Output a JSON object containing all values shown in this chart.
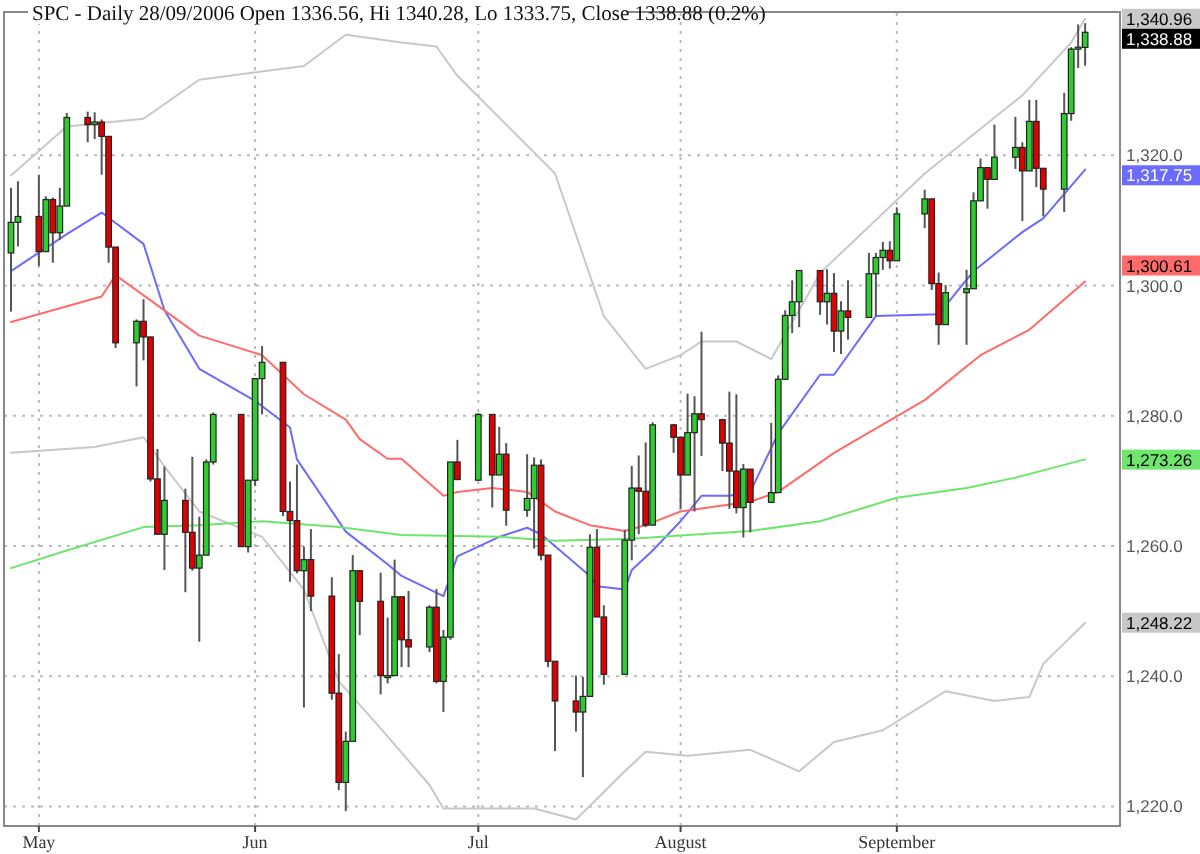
{
  "chart_data": {
    "type": "candlestick",
    "title": "SPC - Daily 28/09/2006 Open 1336.56, Hi 1340.28, Lo 1333.75, Close 1338.88 (0.2%)",
    "x": [
      "2006-04-27",
      "2006-04-28",
      "2006-05-01",
      "2006-05-02",
      "2006-05-03",
      "2006-05-04",
      "2006-05-05",
      "2006-05-08",
      "2006-05-09",
      "2006-05-10",
      "2006-05-11",
      "2006-05-12",
      "2006-05-15",
      "2006-05-16",
      "2006-05-17",
      "2006-05-18",
      "2006-05-19",
      "2006-05-22",
      "2006-05-23",
      "2006-05-24",
      "2006-05-25",
      "2006-05-26",
      "2006-05-30",
      "2006-05-31",
      "2006-06-01",
      "2006-06-02",
      "2006-06-05",
      "2006-06-06",
      "2006-06-07",
      "2006-06-08",
      "2006-06-09",
      "2006-06-12",
      "2006-06-13",
      "2006-06-14",
      "2006-06-15",
      "2006-06-16",
      "2006-06-19",
      "2006-06-20",
      "2006-06-21",
      "2006-06-22",
      "2006-06-23",
      "2006-06-26",
      "2006-06-27",
      "2006-06-28",
      "2006-06-29",
      "2006-06-30",
      "2006-07-03",
      "2006-07-05",
      "2006-07-06",
      "2006-07-07",
      "2006-07-10",
      "2006-07-11",
      "2006-07-12",
      "2006-07-13",
      "2006-07-14",
      "2006-07-17",
      "2006-07-18",
      "2006-07-19",
      "2006-07-20",
      "2006-07-21",
      "2006-07-24",
      "2006-07-25",
      "2006-07-26",
      "2006-07-27",
      "2006-07-28",
      "2006-07-31",
      "2006-08-01",
      "2006-08-02",
      "2006-08-03",
      "2006-08-04",
      "2006-08-07",
      "2006-08-08",
      "2006-08-09",
      "2006-08-10",
      "2006-08-11",
      "2006-08-14",
      "2006-08-15",
      "2006-08-16",
      "2006-08-17",
      "2006-08-18",
      "2006-08-21",
      "2006-08-22",
      "2006-08-23",
      "2006-08-24",
      "2006-08-25",
      "2006-08-28",
      "2006-08-29",
      "2006-08-30",
      "2006-08-31",
      "2006-09-01",
      "2006-09-05",
      "2006-09-06",
      "2006-09-07",
      "2006-09-08",
      "2006-09-11",
      "2006-09-12",
      "2006-09-13",
      "2006-09-14",
      "2006-09-15",
      "2006-09-18",
      "2006-09-19",
      "2006-09-20",
      "2006-09-21",
      "2006-09-22",
      "2006-09-25",
      "2006-09-26",
      "2006-09-27",
      "2006-09-28"
    ],
    "ohlc": [
      [
        1305.0,
        1315.0,
        1296.0,
        1309.7
      ],
      [
        1309.7,
        1316.0,
        1306.0,
        1310.6
      ],
      [
        1310.6,
        1317.0,
        1303.0,
        1305.2
      ],
      [
        1305.2,
        1313.7,
        1305.2,
        1313.2
      ],
      [
        1313.2,
        1313.5,
        1303.5,
        1308.1
      ],
      [
        1308.1,
        1315.0,
        1307.0,
        1312.2
      ],
      [
        1312.2,
        1326.5,
        1312.2,
        1325.8
      ],
      [
        1325.8,
        1326.7,
        1322.0,
        1324.7
      ],
      [
        1324.7,
        1326.6,
        1322.5,
        1325.1
      ],
      [
        1325.1,
        1325.5,
        1317.0,
        1322.9
      ],
      [
        1322.9,
        1322.9,
        1303.5,
        1305.9
      ],
      [
        1305.9,
        1305.9,
        1290.4,
        1291.2
      ],
      [
        1291.2,
        1294.8,
        1284.5,
        1294.5
      ],
      [
        1294.5,
        1297.9,
        1288.5,
        1292.1
      ],
      [
        1292.1,
        1292.1,
        1269.9,
        1270.3
      ],
      [
        1270.3,
        1274.9,
        1261.8,
        1261.8
      ],
      [
        1261.8,
        1272.2,
        1256.3,
        1267.0
      ],
      [
        1267.0,
        1268.8,
        1252.9,
        1262.1
      ],
      [
        1262.1,
        1273.7,
        1256.2,
        1256.6
      ],
      [
        1256.6,
        1264.5,
        1245.3,
        1258.6
      ],
      [
        1258.6,
        1273.3,
        1258.6,
        1272.9
      ],
      [
        1272.9,
        1280.5,
        1272.5,
        1280.2
      ],
      [
        1280.2,
        1280.2,
        1259.9,
        1259.9
      ],
      [
        1259.9,
        1270.1,
        1259.0,
        1270.1
      ],
      [
        1270.1,
        1285.7,
        1269.2,
        1285.7
      ],
      [
        1285.7,
        1290.7,
        1280.2,
        1288.2
      ],
      [
        1288.2,
        1288.2,
        1264.6,
        1265.3
      ],
      [
        1265.3,
        1269.9,
        1254.5,
        1263.9
      ],
      [
        1263.9,
        1272.5,
        1255.8,
        1256.2
      ],
      [
        1256.2,
        1259.9,
        1235.2,
        1257.9
      ],
      [
        1257.9,
        1262.6,
        1250.0,
        1252.3
      ],
      [
        1252.3,
        1255.2,
        1236.4,
        1237.4
      ],
      [
        1237.4,
        1243.4,
        1222.5,
        1223.7
      ],
      [
        1223.7,
        1231.5,
        1219.3,
        1230.0
      ],
      [
        1230.0,
        1258.6,
        1230.0,
        1256.2
      ],
      [
        1256.2,
        1256.3,
        1246.3,
        1251.5
      ],
      [
        1251.5,
        1255.9,
        1237.2,
        1240.1
      ],
      [
        1240.1,
        1249.0,
        1238.9,
        1240.1
      ],
      [
        1240.1,
        1257.9,
        1240.1,
        1252.2
      ],
      [
        1252.2,
        1252.2,
        1241.4,
        1245.6
      ],
      [
        1245.6,
        1253.1,
        1241.4,
        1244.5
      ],
      [
        1244.5,
        1250.9,
        1243.7,
        1250.6
      ],
      [
        1250.6,
        1253.4,
        1238.9,
        1239.2
      ],
      [
        1239.2,
        1247.1,
        1234.5,
        1246.0
      ],
      [
        1246.0,
        1272.9,
        1245.6,
        1272.9
      ],
      [
        1272.9,
        1276.3,
        1270.2,
        1270.2
      ],
      [
        1270.1,
        1280.4,
        1270.1,
        1280.2
      ],
      [
        1280.2,
        1280.2,
        1265.9,
        1270.9
      ],
      [
        1270.9,
        1278.3,
        1270.9,
        1274.1
      ],
      [
        1274.1,
        1275.8,
        1263.1,
        1265.5
      ],
      [
        1265.5,
        1274.1,
        1264.5,
        1267.3
      ],
      [
        1267.3,
        1273.6,
        1259.6,
        1272.4
      ],
      [
        1272.4,
        1273.3,
        1257.8,
        1258.6
      ],
      [
        1258.6,
        1258.6,
        1241.4,
        1242.3
      ],
      [
        1242.3,
        1242.3,
        1228.5,
        1236.2
      ],
      [
        1236.2,
        1240.1,
        1231.5,
        1234.5
      ],
      [
        1234.5,
        1239.9,
        1224.5,
        1236.9
      ],
      [
        1236.9,
        1261.8,
        1236.9,
        1259.8
      ],
      [
        1259.8,
        1262.6,
        1249.1,
        1249.1
      ],
      [
        1249.1,
        1250.9,
        1238.7,
        1240.3
      ],
      [
        1240.3,
        1262.5,
        1240.3,
        1260.9
      ],
      [
        1260.9,
        1272.3,
        1257.8,
        1268.9
      ],
      [
        1268.9,
        1273.9,
        1261.8,
        1268.4
      ],
      [
        1268.4,
        1275.9,
        1262.9,
        1263.2
      ],
      [
        1263.2,
        1279.0,
        1263.2,
        1278.6
      ],
      [
        1278.6,
        1278.7,
        1274.3,
        1276.7
      ],
      [
        1276.7,
        1276.7,
        1265.7,
        1270.9
      ],
      [
        1270.9,
        1283.4,
        1270.9,
        1277.4
      ],
      [
        1277.4,
        1283.0,
        1265.3,
        1280.3
      ],
      [
        1280.3,
        1292.9,
        1273.8,
        1279.4
      ],
      [
        1279.4,
        1279.4,
        1271.5,
        1275.8
      ],
      [
        1275.8,
        1283.7,
        1265.7,
        1271.5
      ],
      [
        1271.5,
        1283.3,
        1265.0,
        1265.9
      ],
      [
        1265.9,
        1272.6,
        1261.3,
        1271.8
      ],
      [
        1271.8,
        1271.8,
        1262.1,
        1266.7
      ],
      [
        1266.7,
        1278.9,
        1266.7,
        1268.2
      ],
      [
        1268.2,
        1286.2,
        1268.2,
        1285.6
      ],
      [
        1285.6,
        1296.2,
        1285.6,
        1295.4
      ],
      [
        1295.4,
        1300.8,
        1292.7,
        1297.5
      ],
      [
        1297.5,
        1302.3,
        1293.6,
        1302.3
      ],
      [
        1302.3,
        1302.3,
        1295.5,
        1297.5
      ],
      [
        1297.5,
        1302.5,
        1294.0,
        1298.8
      ],
      [
        1298.8,
        1301.9,
        1289.8,
        1293.0
      ],
      [
        1293.0,
        1297.6,
        1289.5,
        1296.1
      ],
      [
        1296.1,
        1300.8,
        1291.7,
        1295.1
      ],
      [
        1295.1,
        1305.0,
        1295.1,
        1301.8
      ],
      [
        1301.8,
        1305.0,
        1295.3,
        1304.3
      ],
      [
        1304.3,
        1306.7,
        1302.4,
        1305.4
      ],
      [
        1305.4,
        1306.8,
        1302.6,
        1303.8
      ],
      [
        1303.8,
        1312.0,
        1303.8,
        1311.0
      ],
      [
        1311.0,
        1314.7,
        1308.8,
        1313.3
      ],
      [
        1313.3,
        1313.3,
        1299.3,
        1300.3
      ],
      [
        1300.3,
        1302.0,
        1290.9,
        1294.0
      ],
      [
        1294.0,
        1300.1,
        1294.0,
        1298.9
      ],
      [
        1298.9,
        1302.4,
        1290.9,
        1299.5
      ],
      [
        1299.5,
        1314.3,
        1299.5,
        1313.0
      ],
      [
        1313.0,
        1319.5,
        1313.0,
        1318.1
      ],
      [
        1318.1,
        1318.2,
        1311.8,
        1316.3
      ],
      [
        1316.3,
        1324.7,
        1316.3,
        1319.7
      ],
      [
        1319.7,
        1325.9,
        1317.9,
        1321.2
      ],
      [
        1321.2,
        1322.0,
        1309.9,
        1317.6
      ],
      [
        1317.6,
        1328.5,
        1317.6,
        1325.2
      ],
      [
        1325.2,
        1328.5,
        1315.1,
        1318.0
      ],
      [
        1318.0,
        1318.0,
        1310.6,
        1314.8
      ],
      [
        1314.8,
        1329.6,
        1311.3,
        1326.4
      ],
      [
        1326.4,
        1336.6,
        1325.3,
        1336.3
      ],
      [
        1336.3,
        1340.1,
        1333.4,
        1336.6
      ],
      [
        1336.56,
        1340.28,
        1333.75,
        1338.88
      ]
    ],
    "series": [
      {
        "type": "line",
        "color": "#c8c8c8",
        "x": [
          "2006-04-27",
          "2006-05-05",
          "2006-05-16",
          "2006-05-24",
          "2006-06-08",
          "2006-06-14",
          "2006-06-22",
          "2006-06-27",
          "2006-06-30",
          "2006-07-14",
          "2006-07-21",
          "2006-07-27",
          "2006-08-01",
          "2006-08-04",
          "2006-08-09",
          "2006-08-14",
          "2006-08-21",
          "2006-09-05",
          "2006-09-19",
          "2006-09-26",
          "2006-09-28"
        ],
        "values": [
          1316.9,
          1324.4,
          1325.6,
          1331.6,
          1333.7,
          1338.5,
          1337.3,
          1336.7,
          1332.2,
          1317.2,
          1295.3,
          1287.2,
          1289.3,
          1291.4,
          1291.4,
          1288.7,
          1301.9,
          1317.2,
          1329.2,
          1337.3,
          1341.0
        ]
      },
      {
        "type": "line",
        "color": "#c8c8c8",
        "x": [
          "2006-04-27",
          "2006-05-09",
          "2006-05-16",
          "2006-05-19",
          "2006-05-24",
          "2006-06-02",
          "2006-06-08",
          "2006-06-13",
          "2006-06-19",
          "2006-06-26",
          "2006-06-28",
          "2006-07-11",
          "2006-07-17",
          "2006-07-24",
          "2006-07-27",
          "2006-08-02",
          "2006-08-11",
          "2006-08-18",
          "2006-08-23",
          "2006-08-30",
          "2006-09-08",
          "2006-09-15",
          "2006-09-20",
          "2006-09-22",
          "2006-09-28"
        ],
        "values": [
          1274.3,
          1275.2,
          1276.7,
          1272.2,
          1265.3,
          1261.4,
          1253.3,
          1239.2,
          1232.0,
          1223.3,
          1219.7,
          1219.7,
          1218.0,
          1225.4,
          1228.4,
          1227.8,
          1228.7,
          1225.4,
          1229.9,
          1231.7,
          1237.7,
          1236.2,
          1236.8,
          1241.9,
          1248.2
        ]
      },
      {
        "type": "line",
        "color": "#6b6bff",
        "x": [
          "2006-04-27",
          "2006-05-05",
          "2006-05-10",
          "2006-05-16",
          "2006-05-19",
          "2006-05-24",
          "2006-06-01",
          "2006-06-06",
          "2006-06-07",
          "2006-06-14",
          "2006-06-20",
          "2006-06-22",
          "2006-06-28",
          "2006-06-30",
          "2006-07-06",
          "2006-07-10",
          "2006-07-12",
          "2006-07-18",
          "2006-07-19",
          "2006-07-20",
          "2006-07-24",
          "2006-07-25",
          "2006-07-28",
          "2006-08-01",
          "2006-08-04",
          "2006-08-08",
          "2006-08-11",
          "2006-08-15",
          "2006-08-21",
          "2006-08-23",
          "2006-08-29",
          "2006-09-07",
          "2006-09-12",
          "2006-09-19",
          "2006-09-22",
          "2006-09-28"
        ],
        "values": [
          1302.2,
          1307.9,
          1311.2,
          1306.4,
          1296.2,
          1287.2,
          1282.3,
          1278.2,
          1273.3,
          1262.2,
          1257.2,
          1255.4,
          1252.3,
          1258.4,
          1261.4,
          1262.8,
          1261.8,
          1256.3,
          1255.4,
          1253.8,
          1253.3,
          1256.3,
          1259.3,
          1263.8,
          1267.7,
          1267.7,
          1268.3,
          1277.3,
          1286.3,
          1286.3,
          1295.3,
          1295.6,
          1302.2,
          1308.2,
          1310.3,
          1317.8
        ]
      },
      {
        "type": "line",
        "color": "#ff6b6b",
        "x": [
          "2006-04-27",
          "2006-05-10",
          "2006-05-12",
          "2006-05-24",
          "2006-06-02",
          "2006-06-08",
          "2006-06-14",
          "2006-06-16",
          "2006-06-20",
          "2006-06-22",
          "2006-06-28",
          "2006-06-30",
          "2006-07-05",
          "2006-07-10",
          "2006-07-14",
          "2006-07-19",
          "2006-07-24",
          "2006-07-27",
          "2006-08-01",
          "2006-08-07",
          "2006-08-11",
          "2006-08-15",
          "2006-08-23",
          "2006-09-05",
          "2006-09-13",
          "2006-09-20",
          "2006-09-28"
        ],
        "values": [
          1294.4,
          1298.3,
          1301.6,
          1292.3,
          1289.3,
          1283.3,
          1279.4,
          1276.4,
          1273.4,
          1273.4,
          1267.7,
          1268.3,
          1268.9,
          1268.3,
          1265.3,
          1263.2,
          1262.3,
          1263.2,
          1265.3,
          1266.2,
          1266.8,
          1268.3,
          1274.3,
          1282.4,
          1289.3,
          1293.2,
          1300.6
        ]
      },
      {
        "type": "line",
        "color": "#6ee66e",
        "x": [
          "2006-04-27",
          "2006-05-05",
          "2006-05-16",
          "2006-05-24",
          "2006-06-02",
          "2006-06-13",
          "2006-06-22",
          "2006-07-06",
          "2006-07-14",
          "2006-07-25",
          "2006-08-02",
          "2006-08-11",
          "2006-08-21",
          "2006-09-01",
          "2006-09-11",
          "2006-09-18",
          "2006-09-28"
        ],
        "values": [
          1256.6,
          1259.3,
          1262.9,
          1263.2,
          1263.8,
          1262.9,
          1261.7,
          1261.4,
          1260.8,
          1261.1,
          1261.7,
          1262.3,
          1263.8,
          1267.4,
          1268.9,
          1270.5,
          1273.3
        ]
      }
    ],
    "annotations": [
      {
        "text": "1,340.96",
        "x": "2006-09-28",
        "y": 1340.96
      },
      {
        "text": "1,338.88",
        "x": "2006-09-28",
        "y": 1338.88
      },
      {
        "text": "1,317.75",
        "x": "2006-09-28",
        "y": 1317.75
      },
      {
        "text": "1,300.61",
        "x": "2006-09-28",
        "y": 1300.61
      },
      {
        "text": "1,273.26",
        "x": "2006-09-28",
        "y": 1273.26
      },
      {
        "text": "1,248.22",
        "x": "2006-09-28",
        "y": 1248.22
      }
    ],
    "xlim": [
      "2006-04-26",
      "2006-10-03"
    ],
    "xticks": [
      {
        "value": "2006-05-01",
        "label": "May"
      },
      {
        "value": "2006-06-01",
        "label": "Jun"
      },
      {
        "value": "2006-07-03",
        "label": "Jul"
      },
      {
        "value": "2006-08-01",
        "label": "August"
      },
      {
        "value": "2006-09-01",
        "label": "September"
      }
    ],
    "ylim": [
      1217,
      1342
    ],
    "yticks": [
      {
        "value": 1220,
        "label": "1,220.0"
      },
      {
        "value": 1240,
        "label": "1,240.0"
      },
      {
        "value": 1260,
        "label": "1,260.0"
      },
      {
        "value": 1280,
        "label": "1,280.0"
      },
      {
        "value": 1300,
        "label": "1,300.0"
      },
      {
        "value": 1320,
        "label": "1,320.0"
      }
    ],
    "grid": true
  }
}
